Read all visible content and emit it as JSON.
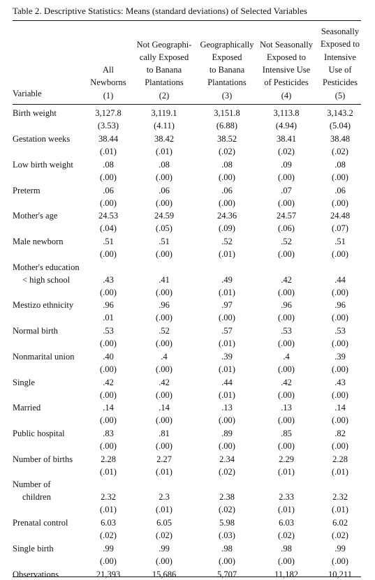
{
  "caption": "Table 2. Descriptive Statistics: Means (standard deviations) of Selected Variables",
  "variable_header": "Variable",
  "columns": [
    {
      "lines": [
        "All",
        "Newborns",
        "(1)"
      ]
    },
    {
      "lines": [
        "Not Geographi-",
        "cally Exposed",
        "to Banana",
        "Plantations",
        "(2)"
      ]
    },
    {
      "lines": [
        "Geographically",
        "Exposed",
        "to Banana",
        "Plantations",
        "(3)"
      ]
    },
    {
      "lines": [
        "Not Seasonally",
        "Exposed to",
        "Intensive Use",
        "of Pesticides",
        "(4)"
      ]
    },
    {
      "lines": [
        "Seasonally",
        "Exposed to",
        "Intensive",
        "Use of",
        "Pesticides",
        "(5)"
      ]
    }
  ],
  "rows": [
    {
      "label": [
        "Birth weight"
      ],
      "means": [
        "3,127.8",
        "3,119.1",
        "3,151.8",
        "3,113.8",
        "3,143.2"
      ],
      "sds": [
        "(3.53)",
        "(4.11)",
        "(6.88)",
        "(4.94)",
        "(5.04)"
      ]
    },
    {
      "label": [
        "Gestation weeks"
      ],
      "means": [
        "38.44",
        "38.42",
        "38.52",
        "38.41",
        "38.48"
      ],
      "sds": [
        "(.01)",
        "(.01)",
        "(.02)",
        "(.02)",
        "(.02)"
      ]
    },
    {
      "label": [
        "Low birth weight"
      ],
      "means": [
        ".08",
        ".08",
        ".08",
        ".09",
        ".08"
      ],
      "sds": [
        "(.00)",
        "(.00)",
        "(.00)",
        "(.00)",
        "(.00)"
      ]
    },
    {
      "label": [
        "Preterm"
      ],
      "means": [
        ".06",
        ".06",
        ".06",
        ".07",
        ".06"
      ],
      "sds": [
        "(.00)",
        "(.00)",
        "(.00)",
        "(.00)",
        "(.00)"
      ]
    },
    {
      "label": [
        "Mother's age"
      ],
      "means": [
        "24.53",
        "24.59",
        "24.36",
        "24.57",
        "24.48"
      ],
      "sds": [
        "(.04)",
        "(.05)",
        "(.09)",
        "(.06)",
        "(.07)"
      ]
    },
    {
      "label": [
        "Male newborn"
      ],
      "means": [
        ".51",
        ".51",
        ".52",
        ".52",
        ".51"
      ],
      "sds": [
        "(.00)",
        "(.00)",
        "(.01)",
        "(.00)",
        "(.00)"
      ]
    },
    {
      "label": [
        "Mother's education",
        "< high school"
      ],
      "means": [
        ".43",
        ".41",
        ".49",
        ".42",
        ".44"
      ],
      "sds": [
        "(.00)",
        "(.00)",
        "(.01)",
        "(.00)",
        "(.00)"
      ]
    },
    {
      "label": [
        "Mestizo ethnicity"
      ],
      "means": [
        ".96",
        ".96",
        ".97",
        ".96",
        ".96"
      ],
      "sds": [
        ".01",
        "(.00)",
        "(.00)",
        "(.00)",
        "(.00)"
      ]
    },
    {
      "label": [
        "Normal birth"
      ],
      "means": [
        ".53",
        ".52",
        ".57",
        ".53",
        ".53"
      ],
      "sds": [
        "(.00)",
        "(.00)",
        "(.01)",
        "(.00)",
        "(.00)"
      ]
    },
    {
      "label": [
        "Nonmarital union"
      ],
      "means": [
        ".40",
        ".4",
        ".39",
        ".4",
        ".39"
      ],
      "sds": [
        "(.00)",
        "(.00)",
        "(.01)",
        "(.00)",
        "(.00)"
      ]
    },
    {
      "label": [
        "Single"
      ],
      "means": [
        ".42",
        ".42",
        ".44",
        ".42",
        ".43"
      ],
      "sds": [
        "(.00)",
        "(.00)",
        "(.01)",
        "(.00)",
        "(.00)"
      ]
    },
    {
      "label": [
        "Married"
      ],
      "means": [
        ".14",
        ".14",
        ".13",
        ".13",
        ".14"
      ],
      "sds": [
        "(.00)",
        "(.00)",
        "(.00)",
        "(.00)",
        "(.00)"
      ]
    },
    {
      "label": [
        "Public hospital"
      ],
      "means": [
        ".83",
        ".81",
        ".89",
        ".85",
        ".82"
      ],
      "sds": [
        "(.00)",
        "(.00)",
        "(.00)",
        "(.00)",
        "(.00)"
      ]
    },
    {
      "label": [
        "Number of births"
      ],
      "means": [
        "2.28",
        "2.27",
        "2.34",
        "2.29",
        "2.28"
      ],
      "sds": [
        "(.01)",
        "(.01)",
        "(.02)",
        "(.01)",
        "(.01)"
      ]
    },
    {
      "label": [
        "Number of",
        "children"
      ],
      "means": [
        "2.32",
        "2.3",
        "2.38",
        "2.33",
        "2.32"
      ],
      "sds": [
        "(.01)",
        "(.01)",
        "(.02)",
        "(.01)",
        "(.01)"
      ]
    },
    {
      "label": [
        "Prenatal control"
      ],
      "means": [
        "6.03",
        "6.05",
        "5.98",
        "6.03",
        "6.02"
      ],
      "sds": [
        "(.02)",
        "(.02)",
        "(.03)",
        "(.02)",
        "(.02)"
      ]
    },
    {
      "label": [
        "Single birth"
      ],
      "means": [
        ".99",
        ".99",
        ".98",
        ".98",
        ".99"
      ],
      "sds": [
        "(.00)",
        "(.00)",
        "(.00)",
        "(.00)",
        "(.00)"
      ]
    },
    {
      "label": [
        "Observations"
      ],
      "means": [
        "21,393",
        "15,686",
        "5,707",
        "11,182",
        "10,211"
      ],
      "sds": []
    }
  ]
}
